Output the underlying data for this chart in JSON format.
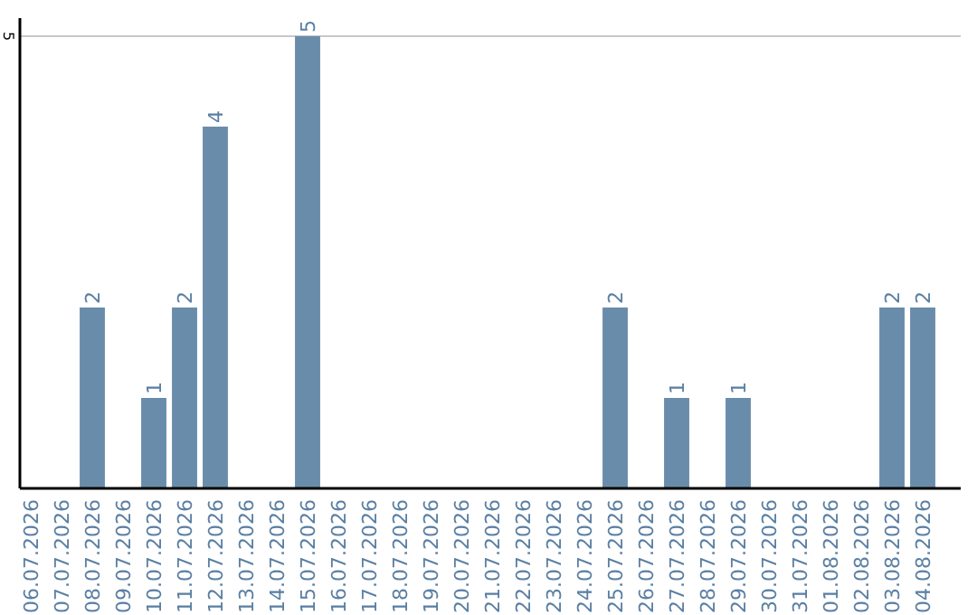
{
  "chart_data": {
    "type": "bar",
    "categories": [
      "06.07.2026",
      "07.07.2026",
      "08.07.2026",
      "09.07.2026",
      "10.07.2026",
      "11.07.2026",
      "12.07.2026",
      "13.07.2026",
      "14.07.2026",
      "15.07.2026",
      "16.07.2026",
      "17.07.2026",
      "18.07.2026",
      "19.07.2026",
      "20.07.2026",
      "21.07.2026",
      "22.07.2026",
      "23.07.2026",
      "24.07.2026",
      "25.07.2026",
      "26.07.2026",
      "27.07.2026",
      "28.07.2026",
      "29.07.2026",
      "30.07.2026",
      "31.07.2026",
      "01.08.2026",
      "02.08.2026",
      "03.08.2026",
      "04.08.2026"
    ],
    "values": [
      0,
      0,
      2,
      0,
      1,
      2,
      4,
      0,
      0,
      5,
      0,
      0,
      0,
      0,
      0,
      0,
      0,
      0,
      0,
      2,
      0,
      1,
      0,
      1,
      0,
      0,
      0,
      0,
      2,
      2
    ],
    "value_labels": [
      null,
      null,
      "2",
      null,
      "1",
      "2",
      "4",
      null,
      null,
      "5",
      null,
      null,
      null,
      null,
      null,
      null,
      null,
      null,
      null,
      "2",
      null,
      "1",
      null,
      "1",
      null,
      null,
      null,
      null,
      "2",
      "2"
    ],
    "color": "#6a8cab",
    "ylim": [
      0,
      5.2
    ],
    "yticks": [
      5
    ],
    "grid": "y"
  }
}
